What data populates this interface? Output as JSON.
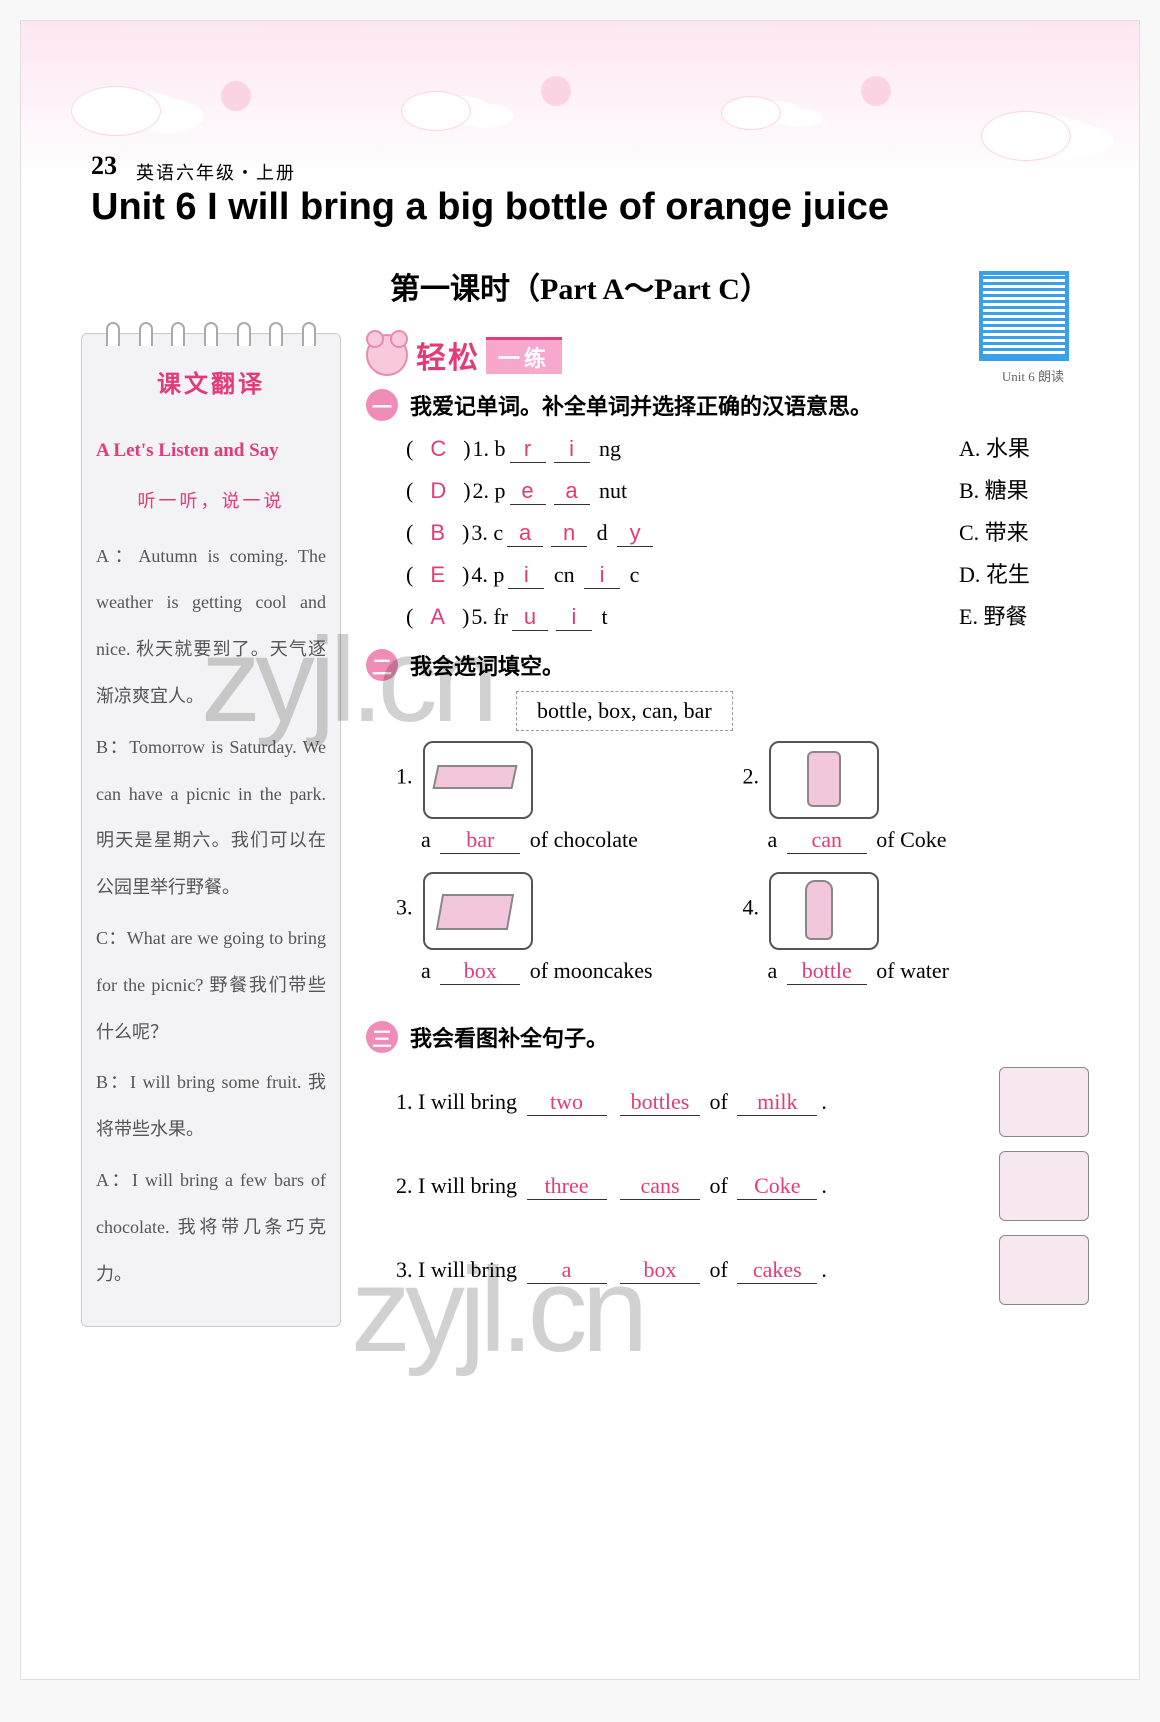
{
  "header": {
    "page_number": "23",
    "page_sub": "英语六年级・上册",
    "unit_title": "Unit 6   I will bring a big bottle of orange juice",
    "lesson_title": "第一课时（Part A～Part C）",
    "qr_label": "Unit 6 朗读"
  },
  "sidebar": {
    "title": "课文翻译",
    "sub1": "A   Let's Listen and Say",
    "sub2": "听一听，说一说",
    "dialog": [
      "A：Autumn is coming. The weather is getting cool and nice. 秋天就要到了。天气逐渐凉爽宜人。",
      "B：Tomorrow is Saturday. We can have a picnic in the park. 明天是星期六。我们可以在公园里举行野餐。",
      "C：What are we going to bring for the picnic? 野餐我们带些什么呢？",
      "B：I will bring some fruit. 我将带些水果。",
      "A：I will bring a few bars of chocolate. 我将带几条巧克力。"
    ]
  },
  "section_head": {
    "title": "轻松",
    "sub": "一练"
  },
  "q1": {
    "title": "我爱记单词。补全单词并选择正确的汉语意思。",
    "rows": [
      {
        "ans": "C",
        "num": "1",
        "pre": "b",
        "blanks": [
          "r",
          "i"
        ],
        "post": "ng",
        "opt_letter": "A",
        "opt_text": "水果"
      },
      {
        "ans": "D",
        "num": "2",
        "pre": "p",
        "blanks": [
          "e",
          "a"
        ],
        "post": "nut",
        "opt_letter": "B",
        "opt_text": "糖果"
      },
      {
        "ans": "B",
        "num": "3",
        "pre": "c",
        "blanks": [
          "a",
          "n"
        ],
        "mid": "d",
        "blanks2": [
          "y"
        ],
        "opt_letter": "C",
        "opt_text": "带来"
      },
      {
        "ans": "E",
        "num": "4",
        "pre": "p",
        "blanks": [
          "i"
        ],
        "mid": "cn",
        "blanks2": [
          "i"
        ],
        "post": "c",
        "opt_letter": "D",
        "opt_text": "花生"
      },
      {
        "ans": "A",
        "num": "5",
        "pre": "fr",
        "blanks": [
          "u",
          "i"
        ],
        "post": "t",
        "opt_letter": "E",
        "opt_text": "野餐"
      }
    ]
  },
  "q2": {
    "title": "我会选词填空。",
    "wordbox": "bottle, box, can, bar",
    "items": [
      {
        "num": "1",
        "ans": "bar",
        "tail": "of chocolate",
        "shape": "choco"
      },
      {
        "num": "2",
        "ans": "can",
        "tail": "of Coke",
        "shape": "cancoke"
      },
      {
        "num": "3",
        "ans": "box",
        "tail": "of mooncakes",
        "shape": "boxshape"
      },
      {
        "num": "4",
        "ans": "bottle",
        "tail": "of water",
        "shape": "bottleshape"
      }
    ]
  },
  "q3": {
    "title": "我会看图补全句子。",
    "rows": [
      {
        "num": "1",
        "pre": "I will bring",
        "a1": "two",
        "a2": "bottles",
        "mid": "of",
        "a3": "milk",
        "tail": "."
      },
      {
        "num": "2",
        "pre": "I will bring",
        "a1": "three",
        "a2": "cans",
        "mid": "of",
        "a3": "Coke",
        "tail": "."
      },
      {
        "num": "3",
        "pre": "I will bring",
        "a1": "a",
        "a2": "box",
        "mid": "of",
        "a3": "cakes",
        "tail": "."
      }
    ]
  },
  "watermarks": {
    "w1": "zyjl.cn",
    "w2": "zyjl.cn"
  },
  "colors": {
    "accent": "#e23b7a",
    "pink_bg": "#f8a8cc"
  }
}
